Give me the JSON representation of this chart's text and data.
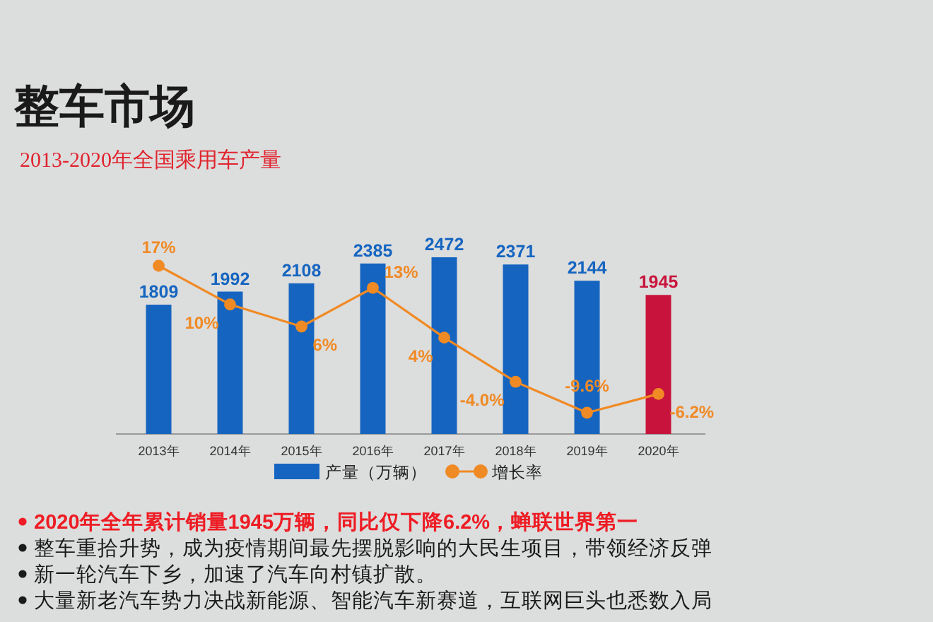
{
  "chart_data": {
    "type": "bar",
    "title": "整车市场",
    "subtitle": "2013-2020年全国乘用车产量",
    "categories": [
      "2013年",
      "2014年",
      "2015年",
      "2016年",
      "2017年",
      "2018年",
      "2019年",
      "2020年"
    ],
    "series": [
      {
        "name": "产量（万辆）",
        "type": "bar",
        "colors": [
          "#1565c0",
          "#1565c0",
          "#1565c0",
          "#1565c0",
          "#1565c0",
          "#1565c0",
          "#1565c0",
          "#c8143c"
        ],
        "values": [
          1809,
          1992,
          2108,
          2385,
          2472,
          2371,
          2144,
          1945
        ]
      },
      {
        "name": "增长率",
        "type": "line",
        "axis": "y2",
        "color": "#f08a24",
        "values": [
          17,
          10,
          6,
          13,
          4,
          -4.0,
          -9.6,
          -6.2
        ],
        "value_labels": [
          "17%",
          "10%",
          "6%",
          "13%",
          "4%",
          "-4.0%",
          "-9.6%",
          "-6.2%"
        ]
      }
    ],
    "data_labels": true,
    "tick_labels": "x",
    "marker": "circle",
    "legend": "bottom",
    "annotations": [
      "2020年全年累计销量1945万辆，同比仅下降6.2%，蝉联世界第一",
      "整车重拾升势，成为疫情期间最先摆脱影响的大民生项目，带领经济反弹",
      "新一轮汽车下乡，加速了汽车向村镇扩散。",
      "大量新老汽车势力决战新能源、智能汽车新赛道，互联网巨头也悉数入局"
    ]
  }
}
